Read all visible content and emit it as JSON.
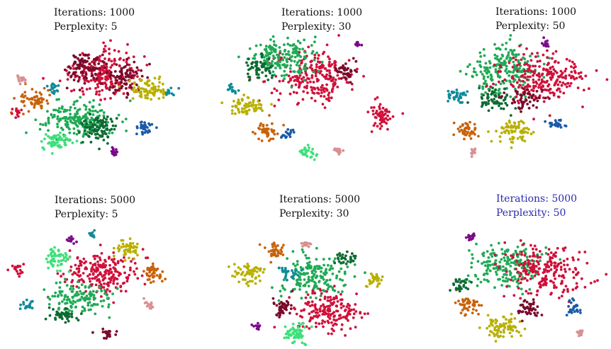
{
  "panels": [
    {
      "iterations_label": "Iterations: 1000",
      "perplexity_label": "Perplexity: 5",
      "highlight": false
    },
    {
      "iterations_label": "Iterations: 1000",
      "perplexity_label": "Perplexity: 30",
      "highlight": false
    },
    {
      "iterations_label": "Iterations: 1000",
      "perplexity_label": "Perplexity: 50",
      "highlight": false
    },
    {
      "iterations_label": "Iterations: 5000",
      "perplexity_label": "Perplexity: 5",
      "highlight": false
    },
    {
      "iterations_label": "Iterations: 5000",
      "perplexity_label": "Perplexity: 30",
      "highlight": false
    },
    {
      "iterations_label": "Iterations: 5000",
      "perplexity_label": "Perplexity: 50",
      "highlight": true
    }
  ],
  "colors": {
    "crimson": "#d0103a",
    "maroon": "#7a0a2a",
    "green": "#1faa55",
    "light_green": "#3ee07a",
    "dark_green": "#0d6a32",
    "olive": "#b8b000",
    "orange": "#c8620a",
    "teal": "#0e8a9a",
    "blue": "#1a5aa8",
    "purple": "#7a0a8a",
    "pink": "#d89090",
    "highlight_text": "#2a2ab0"
  },
  "chart_data": [
    {
      "type": "scatter",
      "title": "Iterations: 1000\nPerplexity: 5",
      "grid": false,
      "axes": false
    },
    {
      "type": "scatter",
      "title": "Iterations: 1000\nPerplexity: 30",
      "grid": false,
      "axes": false
    },
    {
      "type": "scatter",
      "title": "Iterations: 1000\nPerplexity: 50",
      "grid": false,
      "axes": false
    },
    {
      "type": "scatter",
      "title": "Iterations: 5000\nPerplexity: 5",
      "grid": false,
      "axes": false
    },
    {
      "type": "scatter",
      "title": "Iterations: 5000\nPerplexity: 30",
      "grid": false,
      "axes": false
    },
    {
      "type": "scatter",
      "title": "Iterations: 5000\nPerplexity: 50",
      "grid": false,
      "axes": false
    }
  ]
}
